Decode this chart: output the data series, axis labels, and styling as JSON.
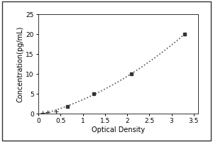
{
  "x_data": [
    0.1,
    0.2,
    0.4,
    0.65,
    1.25,
    2.1,
    3.3
  ],
  "y_data": [
    0.1,
    0.3,
    0.6,
    1.8,
    5.0,
    10.0,
    20.0
  ],
  "xlabel": "Optical Density",
  "ylabel": "Concentration(pg/mL)",
  "xlim": [
    0,
    3.6
  ],
  "ylim": [
    0,
    25
  ],
  "xticks": [
    0,
    0.5,
    1.0,
    1.5,
    2.0,
    2.5,
    3.0,
    3.5
  ],
  "xtick_labels": [
    "0",
    "0.5",
    "1",
    "1.5",
    "2",
    "2.5",
    "3",
    "3.5"
  ],
  "yticks": [
    0,
    5,
    10,
    15,
    20,
    25
  ],
  "ytick_labels": [
    "0",
    "5",
    "10",
    "15",
    "20",
    "25"
  ],
  "line_color": "#555555",
  "marker_color": "#333333",
  "background_color": "#ffffff",
  "outer_box_color": "#333333",
  "font_size": 6.5,
  "label_font_size": 7,
  "marker_size_small": 4,
  "marker_size_large": 3.5,
  "line_width": 1.2
}
